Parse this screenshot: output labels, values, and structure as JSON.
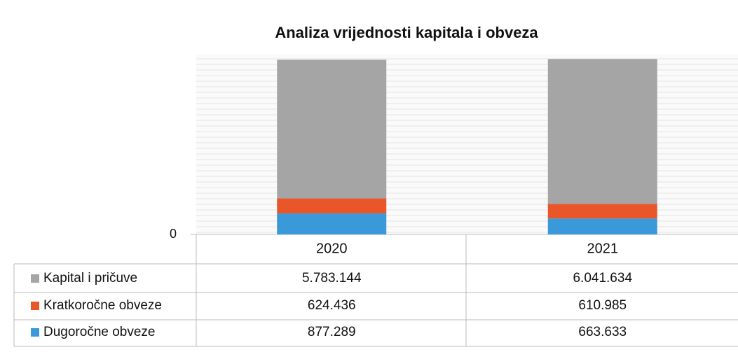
{
  "chart_data": {
    "type": "bar",
    "stacked": true,
    "title": "Analiza vrijednosti kapitala i obveza",
    "categories": [
      "2020",
      "2021"
    ],
    "series": [
      {
        "name": "Kapital i pričuve",
        "color": "#a5a5a5",
        "values": [
          5783144,
          6041634
        ],
        "value_labels": [
          "5.783.144",
          "6.041.634"
        ]
      },
      {
        "name": "Kratkoročne obveze",
        "color": "#e8562a",
        "values": [
          624436,
          610985
        ],
        "value_labels": [
          "624.436",
          "610.985"
        ]
      },
      {
        "name": "Dugoročne obveze",
        "color": "#3a9ad9",
        "values": [
          877289,
          663633
        ],
        "value_labels": [
          "877.289",
          "663.633"
        ]
      }
    ],
    "ylim": [
      0,
      7500000
    ],
    "yticks": [
      0
    ]
  }
}
